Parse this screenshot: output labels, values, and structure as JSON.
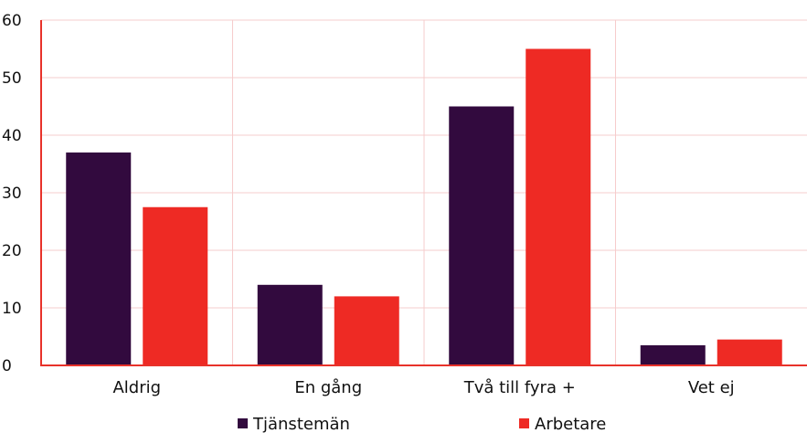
{
  "chart_data": {
    "type": "bar",
    "categories": [
      "Aldrig",
      "En gång",
      "Två till fyra +",
      "Vet ej"
    ],
    "series": [
      {
        "name": "Tjänstemän",
        "values": [
          37,
          14,
          45,
          3.5
        ]
      },
      {
        "name": "Arbetare",
        "values": [
          27.5,
          12,
          55,
          4.5
        ]
      }
    ],
    "ylim": [
      0,
      60
    ],
    "yticks": [
      0,
      10,
      20,
      30,
      40,
      50,
      60
    ],
    "xlabel": "",
    "ylabel": "",
    "title": "",
    "grid": true,
    "legend_position": "bottom",
    "colors": {
      "series": [
        "#320a3e",
        "#ee2a24"
      ],
      "grid": "#f6cccc",
      "axis": "#e8322a"
    }
  }
}
